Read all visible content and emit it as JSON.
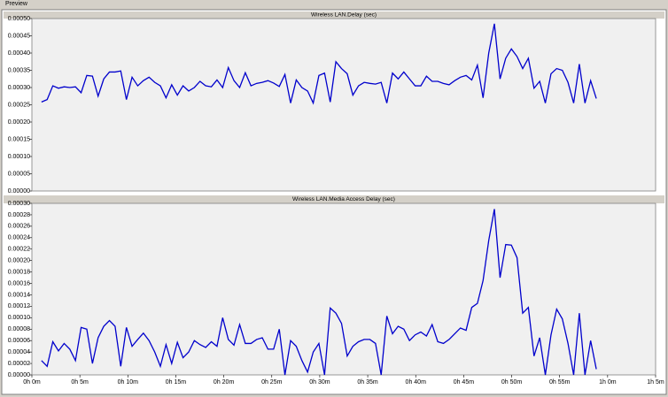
{
  "chart_data": [
    {
      "type": "line",
      "title": "Wireless LAN.Delay (sec)",
      "color": "#0000cc",
      "xlim": [
        0,
        65
      ],
      "ylim": [
        0,
        0.0005
      ],
      "yticks": [
        {
          "value": 0,
          "label": "0.00000"
        },
        {
          "value": 5e-05,
          "label": "0.00005"
        },
        {
          "value": 0.0001,
          "label": "0.00010"
        },
        {
          "value": 0.00015,
          "label": "0.00015"
        },
        {
          "value": 0.0002,
          "label": "0.00020"
        },
        {
          "value": 0.00025,
          "label": "0.00025"
        },
        {
          "value": 0.0003,
          "label": "0.00030"
        },
        {
          "value": 0.00035,
          "label": "0.00035"
        },
        {
          "value": 0.0004,
          "label": "0.00040"
        },
        {
          "value": 0.00045,
          "label": "0.00045"
        },
        {
          "value": 0.0005,
          "label": "0.00050"
        }
      ],
      "x": [
        1.0,
        1.59,
        2.18,
        2.77,
        3.36,
        3.95,
        4.54,
        5.13,
        5.72,
        6.31,
        6.9,
        7.49,
        8.08,
        8.67,
        9.26,
        9.85,
        10.44,
        11.03,
        11.62,
        12.21,
        12.8,
        13.39,
        13.98,
        14.57,
        15.16,
        15.75,
        16.34,
        16.93,
        17.52,
        18.11,
        18.7,
        19.29,
        19.88,
        20.47,
        21.06,
        21.65,
        22.24,
        22.83,
        23.42,
        24.01,
        24.6,
        25.19,
        25.78,
        26.37,
        26.96,
        27.55,
        28.14,
        28.73,
        29.32,
        29.91,
        30.5,
        31.09,
        31.68,
        32.27,
        32.86,
        33.45,
        34.04,
        34.63,
        35.22,
        35.81,
        36.4,
        36.99,
        37.58,
        38.17,
        38.76,
        39.35,
        39.94,
        40.53,
        41.12,
        41.71,
        42.3,
        42.89,
        43.48,
        44.07,
        44.66,
        45.25,
        45.84,
        46.43,
        47.02,
        47.61,
        48.2,
        48.79,
        49.38,
        49.97,
        50.56,
        51.15,
        51.74,
        52.33,
        52.92,
        53.51,
        54.1,
        54.69,
        55.28,
        55.87,
        56.46,
        57.05,
        57.64,
        58.23,
        58.82
      ],
      "values": [
        0.000258,
        0.000265,
        0.000305,
        0.000298,
        0.000302,
        0.0003,
        0.000302,
        0.000285,
        0.000335,
        0.000333,
        0.000275,
        0.000325,
        0.000345,
        0.000345,
        0.000348,
        0.000265,
        0.00033,
        0.000305,
        0.00032,
        0.00033,
        0.000315,
        0.000305,
        0.00027,
        0.000308,
        0.000278,
        0.000305,
        0.00029,
        0.0003,
        0.000318,
        0.000305,
        0.000302,
        0.000322,
        0.0003,
        0.000358,
        0.00032,
        0.0003,
        0.000343,
        0.000305,
        0.000312,
        0.000315,
        0.00032,
        0.000313,
        0.000303,
        0.000338,
        0.000255,
        0.000322,
        0.0003,
        0.00029,
        0.000255,
        0.000335,
        0.000342,
        0.000258,
        0.000375,
        0.000355,
        0.00034,
        0.000278,
        0.000305,
        0.000315,
        0.000312,
        0.00031,
        0.000315,
        0.000255,
        0.000342,
        0.000325,
        0.000345,
        0.000325,
        0.000305,
        0.000305,
        0.000333,
        0.000318,
        0.000318,
        0.000312,
        0.000308,
        0.00032,
        0.00033,
        0.000335,
        0.000322,
        0.000365,
        0.00027,
        0.0004,
        0.000485,
        0.000325,
        0.000385,
        0.000412,
        0.00039,
        0.000355,
        0.000385,
        0.000298,
        0.000318,
        0.000255,
        0.00034,
        0.000355,
        0.00035,
        0.000315,
        0.000255,
        0.000368,
        0.000255,
        0.00032,
        0.000268
      ]
    },
    {
      "type": "line",
      "title": "Wireless LAN.Media Access Delay (sec)",
      "color": "#0000cc",
      "xlim": [
        0,
        65
      ],
      "ylim": [
        0,
        0.0003
      ],
      "xticks": [
        {
          "value": 0,
          "label": "0h 0m"
        },
        {
          "value": 5,
          "label": "0h 5m"
        },
        {
          "value": 10,
          "label": "0h 10m"
        },
        {
          "value": 15,
          "label": "0h 15m"
        },
        {
          "value": 20,
          "label": "0h 20m"
        },
        {
          "value": 25,
          "label": "0h 25m"
        },
        {
          "value": 30,
          "label": "0h 30m"
        },
        {
          "value": 35,
          "label": "0h 35m"
        },
        {
          "value": 40,
          "label": "0h 40m"
        },
        {
          "value": 45,
          "label": "0h 45m"
        },
        {
          "value": 50,
          "label": "0h 50m"
        },
        {
          "value": 55,
          "label": "0h 55m"
        },
        {
          "value": 60,
          "label": "1h 0m"
        },
        {
          "value": 65,
          "label": "1h 5m"
        }
      ],
      "yticks": [
        {
          "value": 0,
          "label": "0.00000"
        },
        {
          "value": 2e-05,
          "label": "0.00002"
        },
        {
          "value": 4e-05,
          "label": "0.00004"
        },
        {
          "value": 6e-05,
          "label": "0.00006"
        },
        {
          "value": 8e-05,
          "label": "0.00008"
        },
        {
          "value": 0.0001,
          "label": "0.00010"
        },
        {
          "value": 0.00012,
          "label": "0.00012"
        },
        {
          "value": 0.00014,
          "label": "0.00014"
        },
        {
          "value": 0.00016,
          "label": "0.00016"
        },
        {
          "value": 0.00018,
          "label": "0.00018"
        },
        {
          "value": 0.0002,
          "label": "0.00020"
        },
        {
          "value": 0.00022,
          "label": "0.00022"
        },
        {
          "value": 0.00024,
          "label": "0.00024"
        },
        {
          "value": 0.00026,
          "label": "0.00026"
        },
        {
          "value": 0.00028,
          "label": "0.00028"
        },
        {
          "value": 0.0003,
          "label": "0.00030"
        }
      ],
      "x": [
        1.0,
        1.59,
        2.18,
        2.77,
        3.36,
        3.95,
        4.54,
        5.13,
        5.72,
        6.31,
        6.9,
        7.49,
        8.08,
        8.67,
        9.26,
        9.85,
        10.44,
        11.03,
        11.62,
        12.21,
        12.8,
        13.39,
        13.98,
        14.57,
        15.16,
        15.75,
        16.34,
        16.93,
        17.52,
        18.11,
        18.7,
        19.29,
        19.88,
        20.47,
        21.06,
        21.65,
        22.24,
        22.83,
        23.42,
        24.01,
        24.6,
        25.19,
        25.78,
        26.37,
        26.96,
        27.55,
        28.14,
        28.73,
        29.32,
        29.91,
        30.5,
        31.09,
        31.68,
        32.27,
        32.86,
        33.45,
        34.04,
        34.63,
        35.22,
        35.81,
        36.4,
        36.99,
        37.58,
        38.17,
        38.76,
        39.35,
        39.94,
        40.53,
        41.12,
        41.71,
        42.3,
        42.89,
        43.48,
        44.07,
        44.66,
        45.25,
        45.84,
        46.43,
        47.02,
        47.61,
        48.2,
        48.79,
        49.38,
        49.97,
        50.56,
        51.15,
        51.74,
        52.33,
        52.92,
        53.51,
        54.1,
        54.69,
        55.28,
        55.87,
        56.46,
        57.05,
        57.64,
        58.23,
        58.82
      ],
      "values": [
        2.5e-05,
        1.5e-05,
        5.8e-05,
        4.2e-05,
        5.5e-05,
        4.5e-05,
        2.5e-05,
        8.3e-05,
        8e-05,
        2e-05,
        6.5e-05,
        8.5e-05,
        9.5e-05,
        8.5e-05,
        1.5e-05,
        8.3e-05,
        5e-05,
        6.2e-05,
        7.3e-05,
        6e-05,
        4e-05,
        1.5e-05,
        5.3e-05,
        2e-05,
        5.7e-05,
        3e-05,
        4e-05,
        6e-05,
        5.3e-05,
        4.8e-05,
        5.8e-05,
        5e-05,
        0.0001,
        6.2e-05,
        5.2e-05,
        8.8e-05,
        5.5e-05,
        5.5e-05,
        6.2e-05,
        6.5e-05,
        4.5e-05,
        4.5e-05,
        8e-05,
        0,
        6e-05,
        5e-05,
        2.5e-05,
        5e-06,
        4e-05,
        5.5e-05,
        0,
        0.000117,
        0.000108,
        9e-05,
        3.3e-05,
        5e-05,
        5.8e-05,
        6.2e-05,
        6.2e-05,
        5.5e-05,
        0,
        0.000103,
        7.2e-05,
        8.5e-05,
        8e-05,
        6e-05,
        7e-05,
        7.5e-05,
        6.8e-05,
        8.8e-05,
        5.8e-05,
        5.5e-05,
        6.2e-05,
        7.2e-05,
        8.2e-05,
        7.8e-05,
        0.000118,
        0.000125,
        0.000165,
        0.000235,
        0.00029,
        0.00017,
        0.000228,
        0.000227,
        0.000205,
        0.000108,
        0.000118,
        3.3e-05,
        6.5e-05,
        0,
        7e-05,
        0.000115,
        9.8e-05,
        5.5e-05,
        0,
        0.000108,
        0,
        6e-05,
        1e-05
      ]
    }
  ],
  "preview_label": "Preview"
}
